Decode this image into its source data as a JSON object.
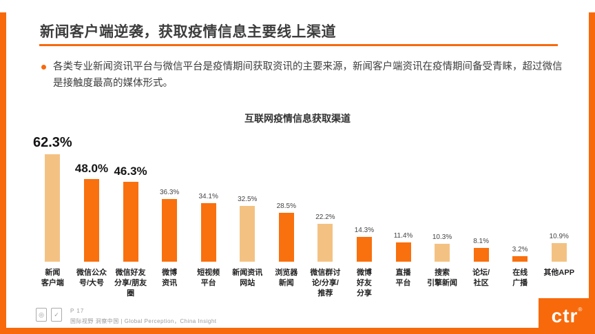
{
  "header": {
    "title": "新闻客户端逆袭，获取疫情信息主要线上渠道",
    "bullet": "各类专业新闻资讯平台与微信平台是疫情期间获取资讯的主要来源，新闻客户端资讯在疫情期间备受青睐，超过微信是接触度最高的媒体形式。"
  },
  "chart_data": {
    "type": "bar",
    "title": "互联网疫情信息获取渠道",
    "categories": [
      "新闻\n客户端",
      "微信公众\n号/大号",
      "微信好友\n分享/朋友\n圈",
      "微博\n资讯",
      "短视频\n平台",
      "新闻资讯\n网站",
      "浏览器\n新闻",
      "微信群讨\n论/分享/\n推荐",
      "微博\n好友\n分享",
      "直播\n平台",
      "搜索\n引擎新闻",
      "论坛/\n社区",
      "在线\n广播",
      "其他APP"
    ],
    "values": [
      62.3,
      48.0,
      46.3,
      36.3,
      34.1,
      32.5,
      28.5,
      22.2,
      14.3,
      11.4,
      10.3,
      8.1,
      3.2,
      10.9
    ],
    "value_labels": [
      "62.3%",
      "48.0%",
      "46.3%",
      "36.3%",
      "34.1%",
      "32.5%",
      "28.5%",
      "22.2%",
      "14.3%",
      "11.4%",
      "10.3%",
      "8.1%",
      "3.2%",
      "10.9%"
    ],
    "bar_colors": [
      "#F3C283",
      "#F9700E",
      "#F9700E",
      "#F9700E",
      "#F9700E",
      "#F3C283",
      "#F9700E",
      "#F3C283",
      "#F9700E",
      "#F9700E",
      "#F3C283",
      "#F9700E",
      "#F9700E",
      "#F3C283"
    ],
    "xlabel": "",
    "ylabel": "",
    "ylim": [
      0,
      70
    ],
    "grid": false,
    "legend": false
  },
  "footer": {
    "page": "P 17",
    "tagline": "国际视野  洞察中国 | Global Perception，China Insight",
    "badge1": "◎",
    "badge2": "✓",
    "logo": "ctr",
    "logo_reg": "®"
  },
  "colors": {
    "accent": "#F8690B",
    "bar_orange": "#F9700E",
    "bar_tan": "#F3C283",
    "text_dark": "#3d3d3d"
  }
}
